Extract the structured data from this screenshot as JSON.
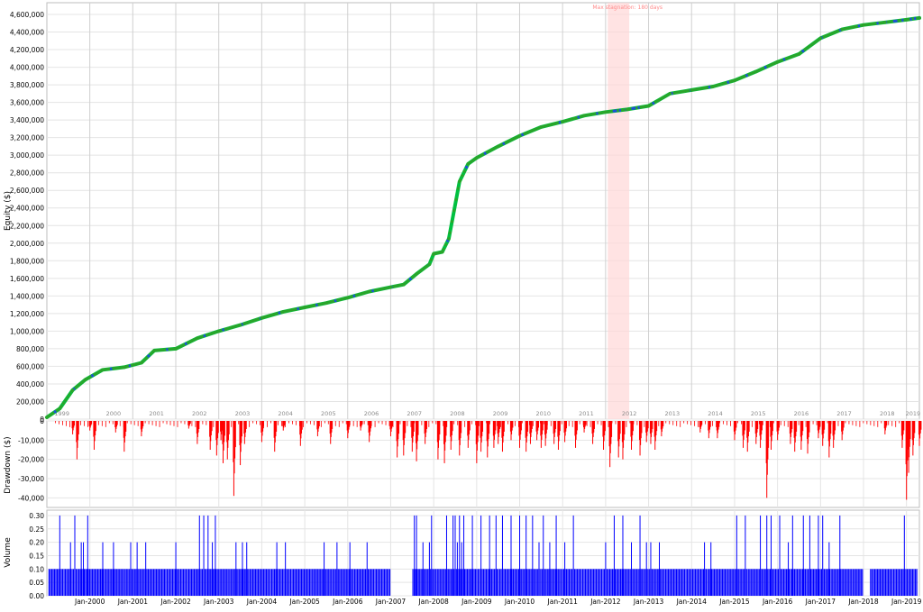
{
  "colors": {
    "equity_line": "#00c040",
    "equity_marker_trade": "#2aa52a",
    "equity_marker_flat": "#1e50d8",
    "drawdown": "#ff0000",
    "volume": "#0000ff",
    "stagnation_fill": "#ffd7d7",
    "stagnation_text": "#ff8a8a",
    "grid": "#e4e4e4",
    "year_grid": "#d0d0d0",
    "axis_text": "#000000",
    "year_text": "#8c8c8c",
    "panel_border": "#bdbdbd"
  },
  "stagnation": {
    "label": "Max stagnation: 180 days",
    "start": 2012.05,
    "end": 2012.55
  },
  "chart_data": [
    {
      "type": "line",
      "panel": "equity",
      "ylabel": "Equity ($)",
      "ylim": [
        0,
        4600000
      ],
      "yticks": [
        0,
        200000,
        400000,
        600000,
        800000,
        1000000,
        1200000,
        1400000,
        1600000,
        1800000,
        2000000,
        2200000,
        2400000,
        2600000,
        2800000,
        3000000,
        3200000,
        3400000,
        3600000,
        3800000,
        4000000,
        4200000,
        4400000,
        4600000
      ],
      "ytick_labels": [
        "0",
        "200,000",
        "400,000",
        "600,000",
        "800,000",
        "1,000,000",
        "1,200,000",
        "1,400,000",
        "1,600,000",
        "1,800,000",
        "2,000,000",
        "2,200,000",
        "2,400,000",
        "2,600,000",
        "2,800,000",
        "3,000,000",
        "3,200,000",
        "3,400,000",
        "3,600,000",
        "3,800,000",
        "4,000,000",
        "4,200,000",
        "4,400,000",
        "4,600,000"
      ],
      "year_labels": [
        "1999",
        "2000",
        "2001",
        "2002",
        "2003",
        "2004",
        "2005",
        "2006",
        "2007",
        "2008",
        "2009",
        "2010",
        "2011",
        "2012",
        "2013",
        "2014",
        "2015",
        "2016",
        "2017",
        "2018",
        "2019"
      ],
      "grid": true,
      "series": [
        {
          "x": [
            1999.0,
            1999.3,
            1999.6,
            1999.9,
            2000.3,
            2000.8,
            2001.2,
            2001.5,
            2002.0,
            2002.5,
            2003.0,
            2003.5,
            2004.0,
            2004.5,
            2005.0,
            2005.5,
            2006.0,
            2006.5,
            2007.0,
            2007.3,
            2007.6,
            2007.9,
            2008.0,
            2008.2,
            2008.35,
            2008.6,
            2008.8,
            2009.0,
            2009.5,
            2010.0,
            2010.5,
            2011.0,
            2011.5,
            2012.0,
            2012.5,
            2013.0,
            2013.5,
            2014.0,
            2014.5,
            2015.0,
            2015.5,
            2016.0,
            2016.5,
            2017.0,
            2017.5,
            2018.0,
            2018.5,
            2019.0,
            2019.3
          ],
          "y": [
            20000,
            120000,
            330000,
            450000,
            560000,
            590000,
            640000,
            780000,
            800000,
            920000,
            1000000,
            1070000,
            1150000,
            1220000,
            1270000,
            1320000,
            1380000,
            1450000,
            1500000,
            1530000,
            1650000,
            1760000,
            1880000,
            1900000,
            2050000,
            2700000,
            2900000,
            2970000,
            3100000,
            3220000,
            3320000,
            3380000,
            3450000,
            3490000,
            3520000,
            3560000,
            3700000,
            3740000,
            3780000,
            3850000,
            3950000,
            4060000,
            4150000,
            4330000,
            4430000,
            4480000,
            4510000,
            4540000,
            4560000
          ]
        }
      ]
    },
    {
      "type": "area",
      "panel": "drawdown",
      "ylabel": "Drawdown ($)",
      "ylim": [
        -45000,
        0
      ],
      "yticks": [
        0,
        -10000,
        -20000,
        -30000,
        -40000
      ],
      "ytick_labels": [
        "0",
        "-10,000",
        "-20,000",
        "-30,000",
        "-40,000"
      ],
      "grid": true,
      "series": [
        {
          "x": [
            1999.6,
            1999.7,
            2000.0,
            2000.1,
            2000.6,
            2000.8,
            2001.2,
            2002.3,
            2002.5,
            2002.8,
            2002.95,
            2003.05,
            2003.1,
            2003.2,
            2003.35,
            2003.5,
            2003.6,
            2004.0,
            2004.3,
            2004.5,
            2004.9,
            2005.3,
            2005.6,
            2006.0,
            2006.3,
            2006.5,
            2007.0,
            2007.15,
            2007.3,
            2007.5,
            2007.6,
            2007.8,
            2008.1,
            2008.25,
            2008.4,
            2008.6,
            2008.8,
            2009.0,
            2009.1,
            2009.25,
            2009.4,
            2009.5,
            2009.6,
            2009.8,
            2010.0,
            2010.15,
            2010.25,
            2010.4,
            2010.5,
            2010.6,
            2010.8,
            2010.9,
            2011.05,
            2011.3,
            2011.5,
            2011.7,
            2011.95,
            2012.1,
            2012.3,
            2012.4,
            2012.6,
            2012.8,
            2012.95,
            2013.05,
            2013.15,
            2013.3,
            2014.2,
            2014.4,
            2014.6,
            2015.0,
            2015.2,
            2015.3,
            2015.5,
            2015.6,
            2015.75,
            2015.85,
            2016.0,
            2016.3,
            2016.4,
            2016.55,
            2016.7,
            2016.95,
            2017.05,
            2017.2,
            2017.3,
            2017.5,
            2018.5,
            2018.9,
            2019.0,
            2019.05,
            2019.15,
            2019.3
          ],
          "y": [
            -7000,
            -20000,
            -5000,
            -15000,
            -6000,
            -16000,
            -8000,
            -4000,
            -12000,
            -15000,
            -18000,
            -10000,
            -22000,
            -20000,
            -39000,
            -23000,
            -12000,
            -11000,
            -16000,
            -5000,
            -13000,
            -8000,
            -12000,
            -9000,
            -5000,
            -11000,
            -8000,
            -19000,
            -18000,
            -16000,
            -21000,
            -12000,
            -20000,
            -22000,
            -15000,
            -18000,
            -14000,
            -22000,
            -16000,
            -19000,
            -14000,
            -12000,
            -16000,
            -10000,
            -14000,
            -16000,
            -12000,
            -10000,
            -14000,
            -13000,
            -12000,
            -15000,
            -11000,
            -14000,
            -6000,
            -12000,
            -15000,
            -24000,
            -19000,
            -20000,
            -15000,
            -18000,
            -11000,
            -12000,
            -15000,
            -8000,
            -6000,
            -9000,
            -9000,
            -10000,
            -14000,
            -16000,
            -12000,
            -14000,
            -40000,
            -15000,
            -10000,
            -12000,
            -16000,
            -15000,
            -17000,
            -9000,
            -13000,
            -19000,
            -14000,
            -10000,
            -7000,
            -14000,
            -41000,
            -27000,
            -18000,
            -13000
          ]
        }
      ]
    },
    {
      "type": "bar",
      "panel": "volume",
      "ylabel": "Volume",
      "ylim": [
        0,
        0.32
      ],
      "yticks": [
        0,
        0.05,
        0.1,
        0.15,
        0.2,
        0.25,
        0.3
      ],
      "ytick_labels": [
        "0.00",
        "0.05",
        "0.10",
        "0.15",
        "0.20",
        "0.25",
        "0.30"
      ],
      "xtick_labels": [
        "Jan-2000",
        "Jan-2001",
        "Jan-2002",
        "Jan-2003",
        "Jan-2004",
        "Jan-2005",
        "Jan-2006",
        "Jan-2007",
        "Jan-2008",
        "Jan-2009",
        "Jan-2010",
        "Jan-2011",
        "Jan-2012",
        "Jan-2013",
        "Jan-2014",
        "Jan-2015",
        "Jan-2016",
        "Jan-2017",
        "Jan-2018",
        "Jan-2019"
      ],
      "grid": true,
      "base_value": 0.1,
      "base_gaps": [
        [
          2007.0,
          2007.5
        ],
        [
          2018.0,
          2018.15
        ]
      ],
      "series": [
        {
          "x": [
            1999.3,
            1999.55,
            1999.65,
            1999.8,
            1999.85,
            1999.95,
            2000.3,
            2000.55,
            2000.95,
            2001.1,
            2001.3,
            2002.0,
            2002.55,
            2002.65,
            2002.75,
            2002.85,
            2002.92,
            2003.4,
            2003.55,
            2003.65,
            2004.35,
            2004.55,
            2005.45,
            2005.75,
            2006.05,
            2006.45,
            2007.55,
            2007.6,
            2007.75,
            2007.9,
            2007.95,
            2008.3,
            2008.45,
            2008.5,
            2008.55,
            2008.6,
            2008.65,
            2008.7,
            2008.9,
            2009.1,
            2009.3,
            2009.45,
            2009.6,
            2009.8,
            2010.0,
            2010.15,
            2010.3,
            2010.45,
            2010.55,
            2010.7,
            2010.85,
            2011.05,
            2011.25,
            2012.0,
            2012.2,
            2012.4,
            2012.6,
            2012.8,
            2012.95,
            2013.05,
            2013.25,
            2014.3,
            2014.45,
            2015.05,
            2015.25,
            2015.6,
            2015.75,
            2015.85,
            2016.05,
            2016.25,
            2016.35,
            2016.6,
            2016.75,
            2016.95,
            2017.05,
            2017.2,
            2017.45,
            2018.95
          ],
          "y": [
            0.3,
            0.2,
            0.3,
            0.2,
            0.2,
            0.3,
            0.2,
            0.2,
            0.2,
            0.2,
            0.2,
            0.2,
            0.3,
            0.3,
            0.3,
            0.2,
            0.3,
            0.2,
            0.2,
            0.2,
            0.2,
            0.2,
            0.2,
            0.2,
            0.2,
            0.2,
            0.3,
            0.3,
            0.2,
            0.2,
            0.3,
            0.3,
            0.3,
            0.3,
            0.2,
            0.3,
            0.2,
            0.3,
            0.3,
            0.3,
            0.3,
            0.3,
            0.3,
            0.3,
            0.3,
            0.3,
            0.3,
            0.2,
            0.3,
            0.2,
            0.3,
            0.2,
            0.3,
            0.2,
            0.3,
            0.3,
            0.2,
            0.3,
            0.2,
            0.2,
            0.2,
            0.2,
            0.2,
            0.3,
            0.3,
            0.3,
            0.3,
            0.3,
            0.3,
            0.2,
            0.3,
            0.3,
            0.3,
            0.3,
            0.3,
            0.2,
            0.3,
            0.3
          ]
        }
      ]
    }
  ]
}
